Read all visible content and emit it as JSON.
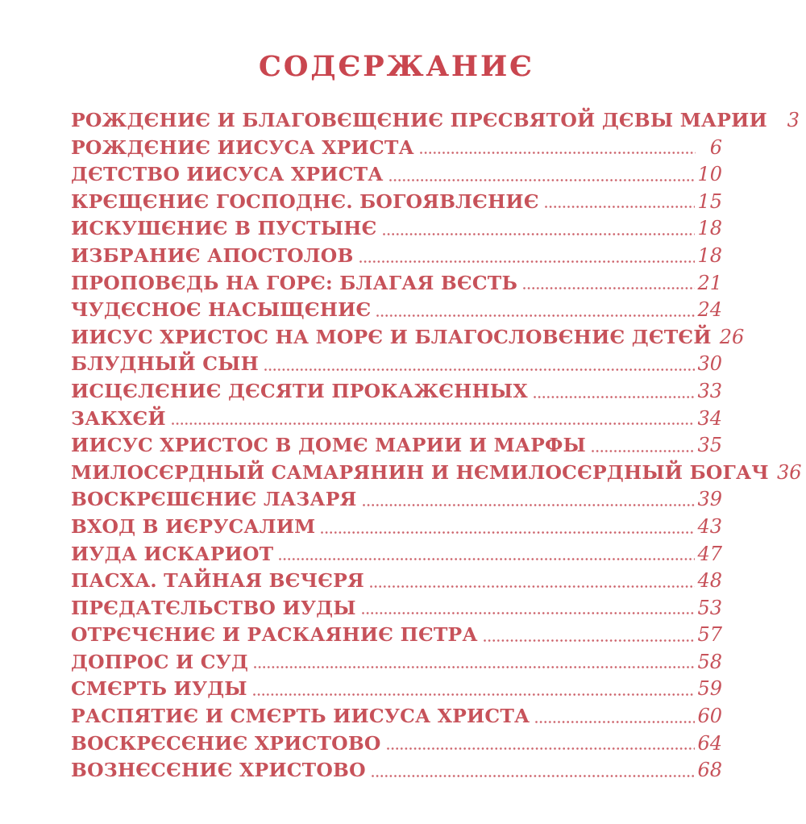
{
  "page": {
    "title": "СОДЕРЖАНИЕ",
    "ink_color": "#c7525a",
    "background_color": "#ffffff"
  },
  "toc": {
    "entries": [
      {
        "title": "РОЖДЕНИЕ И БЛАГОВЕЩЕНИЕ ПРЕСВЯТОЙ ДЕВЫ МАРИИ",
        "page": "3"
      },
      {
        "title": "РОЖДЕНИЕ ИИСУСА ХРИСТА",
        "page": "6"
      },
      {
        "title": "ДЕТСТВО ИИСУСА ХРИСТА",
        "page": "10"
      },
      {
        "title": "КРЕЩЕНИЕ ГОСПОДНЕ. БОГОЯВЛЕНИЕ",
        "page": "15"
      },
      {
        "title": "ИСКУШЕНИЕ В ПУСТЫНЕ",
        "page": "18"
      },
      {
        "title": "ИЗБРАНИЕ АПОСТОЛОВ",
        "page": "18"
      },
      {
        "title": "ПРОПОВЕДЬ НА ГОРЕ: БЛАГАЯ ВЕСТЬ",
        "page": "21"
      },
      {
        "title": "ЧУДЕСНОЕ НАСЫЩЕНИЕ",
        "page": "24"
      },
      {
        "title": "ИИСУС ХРИСТОС НА МОРЕ И БЛАГОСЛОВЕНИЕ ДЕТЕЙ",
        "page": "26"
      },
      {
        "title": "БЛУДНЫЙ СЫН",
        "page": "30"
      },
      {
        "title": "ИСЦЕЛЕНИЕ ДЕСЯТИ ПРОКАЖЕННЫХ",
        "page": "33"
      },
      {
        "title": "ЗАКХЕЙ",
        "page": "34"
      },
      {
        "title": "ИИСУС ХРИСТОС В ДОМЕ МАРИИ И МАРФЫ",
        "page": "35"
      },
      {
        "title": "МИЛОСЕРДНЫЙ САМАРЯНИН И НЕМИЛОСЕРДНЫЙ БОГАЧ",
        "page": "36"
      },
      {
        "title": "ВОСКРЕШЕНИЕ ЛАЗАРЯ",
        "page": "39"
      },
      {
        "title": "ВХОД В ИЕРУСАЛИМ",
        "page": "43"
      },
      {
        "title": "ИУДА ИСКАРИОТ",
        "page": "47"
      },
      {
        "title": "ПАСХА. ТАЙНАЯ ВЕЧЕРЯ",
        "page": "48"
      },
      {
        "title": "ПРЕДАТЕЛЬСТВО ИУДЫ",
        "page": "53"
      },
      {
        "title": "ОТРЕЧЕНИЕ И РАСКАЯНИЕ ПЕТРА",
        "page": "57"
      },
      {
        "title": "ДОПРОС И СУД",
        "page": "58"
      },
      {
        "title": "СМЕРТЬ ИУДЫ",
        "page": "59"
      },
      {
        "title": "РАСПЯТИЕ И СМЕРТЬ ИИСУСА ХРИСТА",
        "page": "60"
      },
      {
        "title": "ВОСКРЕСЕНИЕ ХРИСТОВО",
        "page": "64"
      },
      {
        "title": "ВОЗНЕСЕНИЕ ХРИСТОВО",
        "page": "68"
      }
    ]
  }
}
